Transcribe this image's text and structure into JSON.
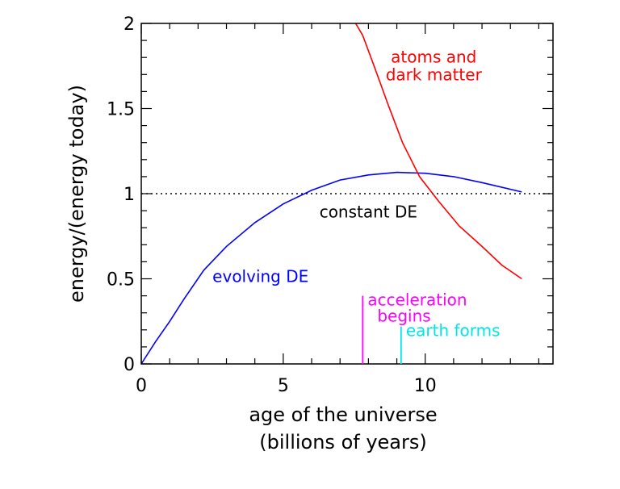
{
  "chart_data": {
    "type": "line",
    "xlabel": [
      "age of the universe",
      "(billions of years)"
    ],
    "ylabel": "energy/(energy today)",
    "xlim": [
      0,
      14.5
    ],
    "ylim": [
      0,
      2
    ],
    "x_ticks": [
      0,
      5,
      10
    ],
    "y_ticks": [
      0,
      0.5,
      1,
      1.5,
      2
    ],
    "x_tick_labels": [
      "0",
      "5",
      "10"
    ],
    "y_tick_labels": [
      "0",
      "0.5",
      "1",
      "1.5",
      "2"
    ],
    "series": [
      {
        "name": "evolving DE",
        "color": "#0000ff",
        "x": [
          0,
          0.5,
          1.0,
          1.5,
          2.2,
          3.0,
          4.0,
          5.0,
          6.0,
          7.0,
          8.0,
          9.0,
          10.0,
          11.0,
          12.0,
          13.4
        ],
        "y": [
          0,
          0.13,
          0.25,
          0.38,
          0.55,
          0.69,
          0.83,
          0.94,
          1.02,
          1.08,
          1.11,
          1.125,
          1.12,
          1.1,
          1.065,
          1.01
        ]
      },
      {
        "name": "constant DE",
        "color": "#000000",
        "dashed": true,
        "x": [
          0,
          14.5
        ],
        "y": [
          1,
          1
        ]
      },
      {
        "name": "atoms and dark matter",
        "color": "#ff0000",
        "x": [
          7.55,
          7.8,
          8.2,
          8.7,
          9.2,
          9.8,
          10.5,
          11.2,
          12.0,
          12.7,
          13.4
        ],
        "y": [
          2.0,
          1.93,
          1.75,
          1.52,
          1.3,
          1.1,
          0.95,
          0.81,
          0.69,
          0.58,
          0.5
        ]
      }
    ],
    "markers": [
      {
        "name": "acceleration-begins",
        "label": [
          "acceleration",
          "begins"
        ],
        "color": "#ff00ff",
        "x": 7.8,
        "y_top": 0.4
      },
      {
        "name": "earth-forms",
        "label": [
          "earth forms"
        ],
        "color": "#00e5e5",
        "x": 9.15,
        "y_top": 0.22
      }
    ],
    "annotations": [
      {
        "name": "atoms-dark-matter-label",
        "lines": [
          "atoms and",
          "dark matter"
        ],
        "color": "#ff0000",
        "x": 10.3,
        "y": 1.77
      },
      {
        "name": "constant-de-label",
        "lines": [
          "constant DE"
        ],
        "color": "#000000",
        "x": 8.0,
        "y": 0.86
      },
      {
        "name": "evolving-de-label",
        "lines": [
          "evolving DE"
        ],
        "color": "#0000ff",
        "x": 4.2,
        "y": 0.48
      }
    ],
    "grid": false,
    "legend": "none"
  }
}
